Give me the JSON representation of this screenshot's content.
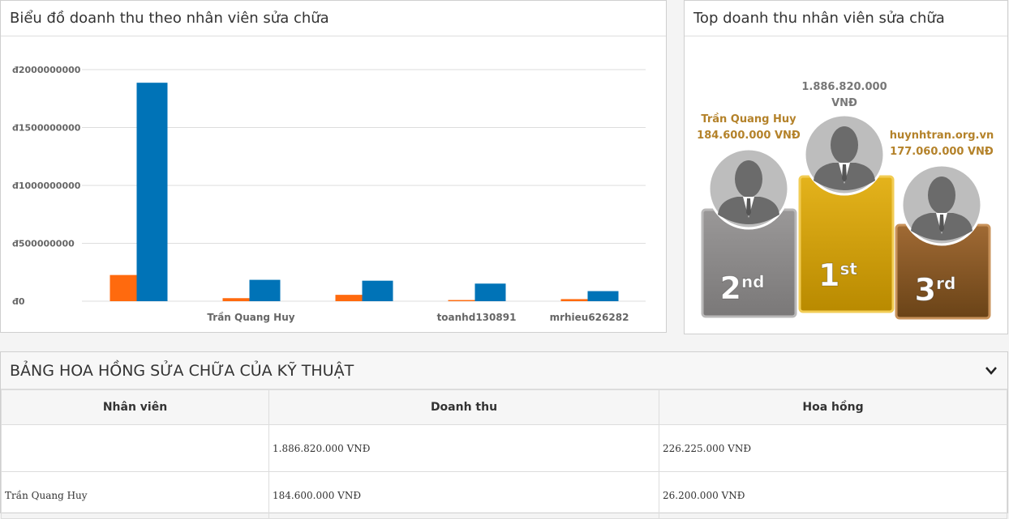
{
  "chart_data": {
    "type": "bar",
    "title": "Biểu đồ doanh thu theo nhân viên sửa chữa",
    "categories": [
      null,
      "Trần Quang Huy",
      null,
      "toanhd130891",
      "mrhieu626282"
    ],
    "series": [
      {
        "color": "#ff6a0e",
        "values": [
          226225000,
          26200000,
          55000000,
          10000000,
          18000000
        ]
      },
      {
        "color": "#0073b7",
        "values": [
          1886820000,
          184600000,
          177060000,
          152000000,
          87000000
        ]
      }
    ],
    "ylim": [
      0,
      2000000000
    ],
    "yticks": [
      {
        "value": 0,
        "label": "đ0"
      },
      {
        "value": 500000000,
        "label": "đ500000000"
      },
      {
        "value": 1000000000,
        "label": "đ1000000000"
      },
      {
        "value": 1500000000,
        "label": "đ1500000000"
      },
      {
        "value": 2000000000,
        "label": "đ2000000000"
      }
    ],
    "grid": true
  },
  "podium": {
    "title": "Top doanh thu nhân viên sửa chữa",
    "places": [
      {
        "rank": "2",
        "suffix": "nd",
        "lines": [
          "Trần Quang Huy",
          "184.600.000 VNĐ"
        ]
      },
      {
        "rank": "1",
        "suffix": "st",
        "lines": [
          "1.886.820.000",
          "VNĐ"
        ]
      },
      {
        "rank": "3",
        "suffix": "rd",
        "lines": [
          "huynhtran.org.vn",
          "177.060.000 VNĐ"
        ]
      }
    ]
  },
  "table": {
    "title": "BẢNG HOA HỒNG SỬA CHỮA CỦA KỸ THUẬT",
    "headers": [
      "Nhân viên",
      "Doanh thu",
      "Hoa hồng"
    ],
    "rows": [
      [
        null,
        "1.886.820.000 VNĐ",
        "226.225.000 VNĐ"
      ],
      [
        "Trần Quang Huy",
        "184.600.000 VNĐ",
        "26.200.000 VNĐ"
      ]
    ]
  }
}
